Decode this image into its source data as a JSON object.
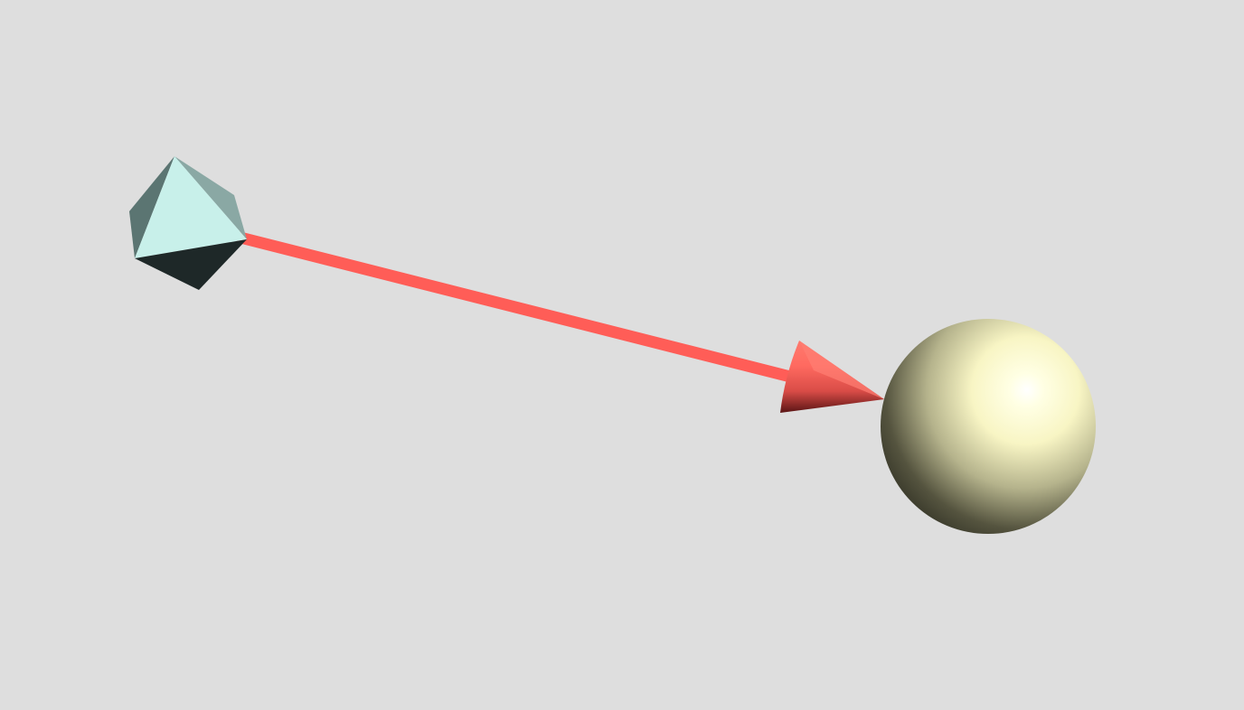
{
  "scene": {
    "background_color": "#dedede",
    "objects": [
      {
        "kind": "octahedron",
        "color": "#c8f0ea"
      },
      {
        "kind": "sphere",
        "color": "#fffcd0"
      },
      {
        "kind": "arrow",
        "color": "#ff5d57",
        "from": "octahedron",
        "to": "sphere"
      }
    ]
  }
}
